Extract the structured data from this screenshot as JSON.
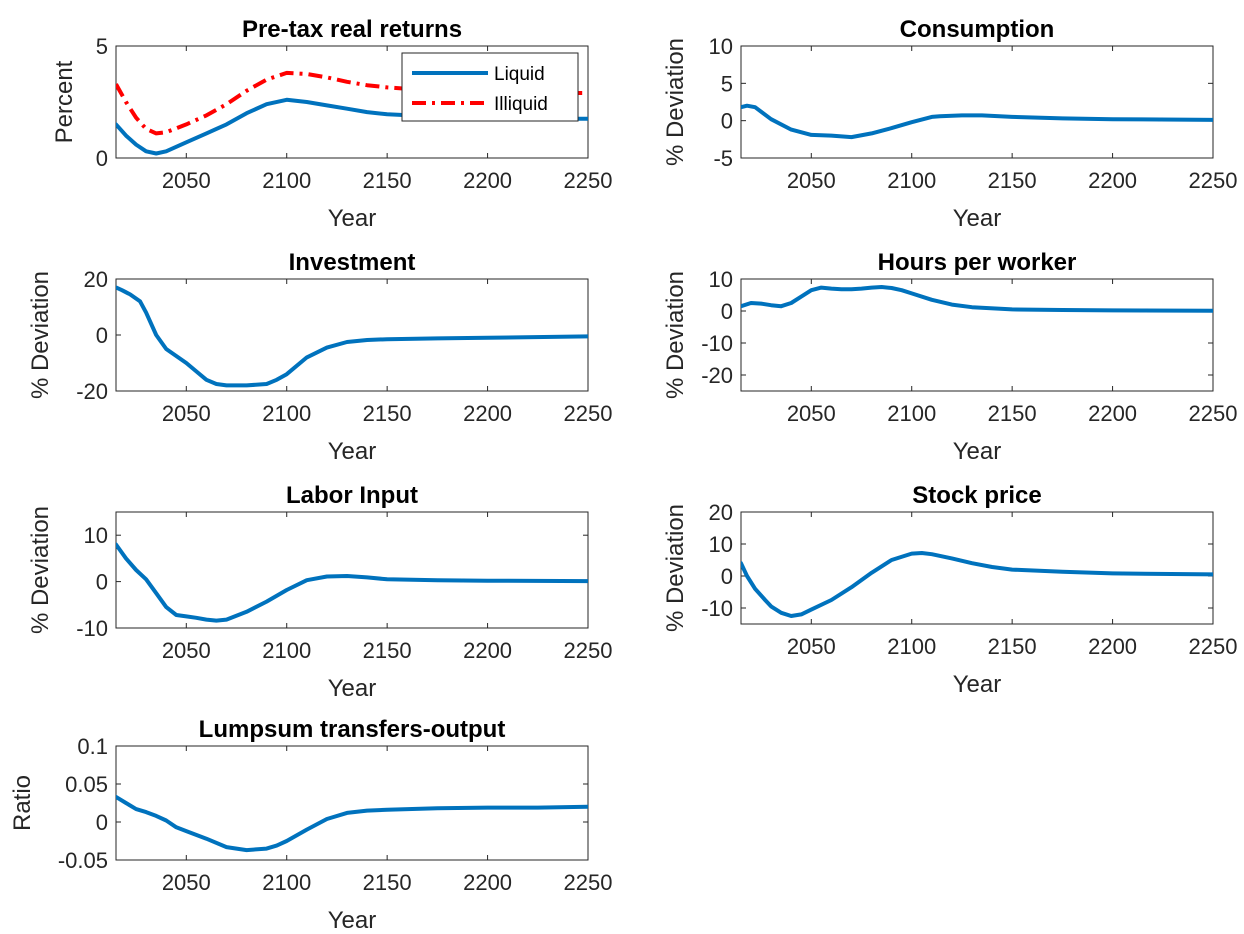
{
  "chart_data": [
    {
      "type": "line",
      "title": "Pre-tax real returns",
      "xlabel": "Year",
      "ylabel": "Percent",
      "xlim": [
        2015,
        2250
      ],
      "ylim": [
        0,
        5
      ],
      "xticks": [
        "2050",
        "2100",
        "2150",
        "2200",
        "2250"
      ],
      "yticks": [
        "0",
        "5"
      ],
      "legend": "top-right",
      "series": [
        {
          "name": "Liquid",
          "color": "#0072BD",
          "style": "solid",
          "x": [
            2015,
            2020,
            2025,
            2030,
            2035,
            2040,
            2050,
            2060,
            2070,
            2080,
            2090,
            2100,
            2110,
            2120,
            2130,
            2140,
            2150,
            2175,
            2200,
            2225,
            2250
          ],
          "y": [
            1.5,
            1.0,
            0.6,
            0.3,
            0.2,
            0.3,
            0.7,
            1.1,
            1.5,
            2.0,
            2.4,
            2.6,
            2.5,
            2.35,
            2.2,
            2.05,
            1.95,
            1.85,
            1.8,
            1.75,
            1.75
          ]
        },
        {
          "name": "Illiquid",
          "color": "#FF0000",
          "style": "dashdot",
          "x": [
            2015,
            2020,
            2025,
            2030,
            2035,
            2040,
            2050,
            2060,
            2070,
            2080,
            2090,
            2100,
            2110,
            2120,
            2130,
            2140,
            2150,
            2175,
            2200,
            2225,
            2250
          ],
          "y": [
            3.3,
            2.5,
            1.8,
            1.3,
            1.1,
            1.15,
            1.5,
            1.9,
            2.4,
            3.0,
            3.5,
            3.8,
            3.75,
            3.6,
            3.4,
            3.25,
            3.15,
            3.0,
            2.95,
            2.9,
            2.9
          ]
        }
      ]
    },
    {
      "type": "line",
      "title": "Consumption",
      "xlabel": "Year",
      "ylabel": "% Deviation",
      "xlim": [
        2015,
        2250
      ],
      "ylim": [
        -5,
        10
      ],
      "xticks": [
        "2050",
        "2100",
        "2150",
        "2200",
        "2250"
      ],
      "yticks": [
        "-5",
        "0",
        "5",
        "10"
      ],
      "series": [
        {
          "color": "#0072BD",
          "style": "solid",
          "x": [
            2015,
            2018,
            2022,
            2030,
            2040,
            2050,
            2060,
            2070,
            2080,
            2090,
            2100,
            2110,
            2114,
            2125,
            2135,
            2150,
            2175,
            2200,
            2250
          ],
          "y": [
            1.8,
            2.0,
            1.8,
            0.2,
            -1.2,
            -1.9,
            -2.0,
            -2.2,
            -1.7,
            -1.0,
            -0.2,
            0.5,
            0.6,
            0.7,
            0.7,
            0.5,
            0.3,
            0.2,
            0.1
          ]
        }
      ]
    },
    {
      "type": "line",
      "title": "Investment",
      "xlabel": "Year",
      "ylabel": "% Deviation",
      "xlim": [
        2015,
        2250
      ],
      "ylim": [
        -20,
        20
      ],
      "xticks": [
        "2050",
        "2100",
        "2150",
        "2200",
        "2250"
      ],
      "yticks": [
        "-20",
        "0",
        "20"
      ],
      "series": [
        {
          "color": "#0072BD",
          "style": "solid",
          "x": [
            2015,
            2018,
            2022,
            2027,
            2030,
            2035,
            2040,
            2050,
            2055,
            2060,
            2065,
            2070,
            2080,
            2090,
            2095,
            2100,
            2110,
            2120,
            2130,
            2140,
            2150,
            2175,
            2200,
            2250
          ],
          "y": [
            17,
            16,
            14.5,
            12,
            8,
            0,
            -5,
            -10,
            -13,
            -16,
            -17.5,
            -18,
            -18,
            -17.5,
            -16,
            -14,
            -8,
            -4.5,
            -2.5,
            -1.8,
            -1.5,
            -1.2,
            -1.0,
            -0.5
          ]
        }
      ]
    },
    {
      "type": "line",
      "title": "Hours per worker",
      "xlabel": "Year",
      "ylabel": "% Deviation",
      "xlim": [
        2015,
        2250
      ],
      "ylim": [
        -25,
        10
      ],
      "xticks": [
        "2050",
        "2100",
        "2150",
        "2200",
        "2250"
      ],
      "yticks": [
        "-20",
        "-10",
        "0",
        "10"
      ],
      "series": [
        {
          "color": "#0072BD",
          "style": "solid",
          "x": [
            2015,
            2020,
            2025,
            2030,
            2035,
            2040,
            2045,
            2050,
            2055,
            2060,
            2065,
            2070,
            2075,
            2080,
            2085,
            2090,
            2095,
            2100,
            2110,
            2120,
            2130,
            2150,
            2175,
            2200,
            2250
          ],
          "y": [
            1.5,
            2.5,
            2.3,
            1.8,
            1.5,
            2.5,
            4.5,
            6.5,
            7.3,
            7.0,
            6.8,
            6.8,
            7.0,
            7.3,
            7.5,
            7.2,
            6.5,
            5.5,
            3.5,
            2.0,
            1.2,
            0.5,
            0.3,
            0.2,
            0.1
          ]
        }
      ]
    },
    {
      "type": "line",
      "title": "Labor Input",
      "xlabel": "Year",
      "ylabel": "% Deviation",
      "xlim": [
        2015,
        2250
      ],
      "ylim": [
        -10,
        15
      ],
      "xticks": [
        "2050",
        "2100",
        "2150",
        "2200",
        "2250"
      ],
      "yticks": [
        "-10",
        "0",
        "10"
      ],
      "series": [
        {
          "color": "#0072BD",
          "style": "solid",
          "x": [
            2015,
            2020,
            2025,
            2030,
            2035,
            2040,
            2045,
            2050,
            2055,
            2060,
            2065,
            2070,
            2080,
            2090,
            2100,
            2110,
            2120,
            2130,
            2140,
            2150,
            2175,
            2200,
            2250
          ],
          "y": [
            8,
            5,
            2.5,
            0.5,
            -2.5,
            -5.5,
            -7.2,
            -7.5,
            -7.8,
            -8.2,
            -8.4,
            -8.2,
            -6.5,
            -4.3,
            -1.8,
            0.3,
            1.1,
            1.2,
            0.9,
            0.5,
            0.3,
            0.2,
            0.1
          ]
        }
      ]
    },
    {
      "type": "line",
      "title": "Stock price",
      "xlabel": "Year",
      "ylabel": "% Deviation",
      "xlim": [
        2015,
        2250
      ],
      "ylim": [
        -15,
        20
      ],
      "xticks": [
        "2050",
        "2100",
        "2150",
        "2200",
        "2250"
      ],
      "yticks": [
        "-10",
        "0",
        "10",
        "20"
      ],
      "series": [
        {
          "color": "#0072BD",
          "style": "solid",
          "x": [
            2015,
            2018,
            2022,
            2027,
            2030,
            2035,
            2040,
            2045,
            2050,
            2060,
            2070,
            2080,
            2090,
            2100,
            2105,
            2110,
            2120,
            2130,
            2140,
            2150,
            2175,
            2200,
            2250
          ],
          "y": [
            4,
            0,
            -4,
            -7.5,
            -9.5,
            -11.5,
            -12.5,
            -12,
            -10.5,
            -7.5,
            -3.5,
            1,
            5,
            7,
            7.2,
            6.8,
            5.5,
            4,
            2.8,
            2,
            1.3,
            0.8,
            0.5
          ]
        }
      ]
    },
    {
      "type": "line",
      "title": "Lumpsum transfers-output",
      "xlabel": "Year",
      "ylabel": "Ratio",
      "xlim": [
        2015,
        2250
      ],
      "ylim": [
        -0.05,
        0.1
      ],
      "xticks": [
        "2050",
        "2100",
        "2150",
        "2200",
        "2250"
      ],
      "yticks": [
        "-0.05",
        "0",
        "0.05",
        "0.1"
      ],
      "series": [
        {
          "color": "#0072BD",
          "style": "solid",
          "x": [
            2015,
            2020,
            2025,
            2030,
            2035,
            2040,
            2045,
            2050,
            2060,
            2070,
            2080,
            2090,
            2095,
            2100,
            2110,
            2120,
            2130,
            2140,
            2150,
            2175,
            2200,
            2225,
            2250
          ],
          "y": [
            0.033,
            0.025,
            0.017,
            0.013,
            0.008,
            0.002,
            -0.007,
            -0.012,
            -0.022,
            -0.033,
            -0.037,
            -0.035,
            -0.031,
            -0.025,
            -0.01,
            0.004,
            0.012,
            0.015,
            0.016,
            0.018,
            0.019,
            0.019,
            0.02
          ]
        }
      ]
    }
  ]
}
